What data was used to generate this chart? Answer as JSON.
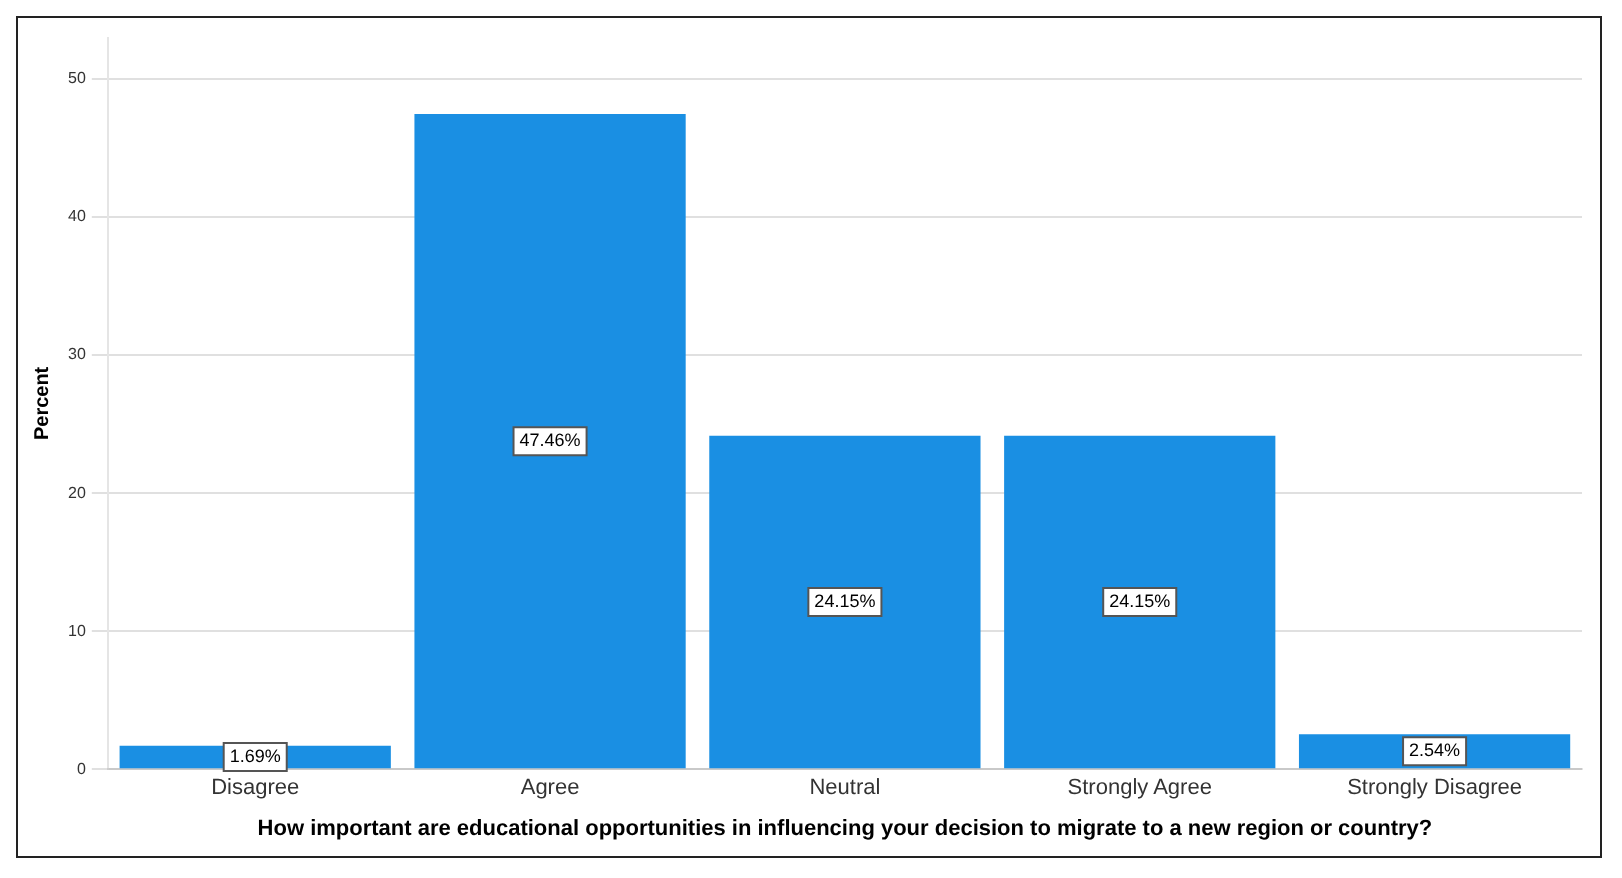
{
  "chart_data": {
    "type": "bar",
    "xlabel": "How important are educational opportunities in influencing your decision to migrate to a new region or country?",
    "ylabel": "Percent",
    "categories": [
      "Disagree",
      "Agree",
      "Neutral",
      "Strongly Agree",
      "Strongly Disagree"
    ],
    "values": [
      1.69,
      47.46,
      24.15,
      24.15,
      2.54
    ],
    "value_labels": [
      "1.69%",
      "47.46%",
      "24.15%",
      "24.15%",
      "2.54%"
    ],
    "color": "#1a8fe3",
    "ylim": [
      0,
      53
    ],
    "yticks": [
      0,
      10,
      20,
      30,
      40,
      50
    ],
    "grid": "y",
    "legend": false
  }
}
